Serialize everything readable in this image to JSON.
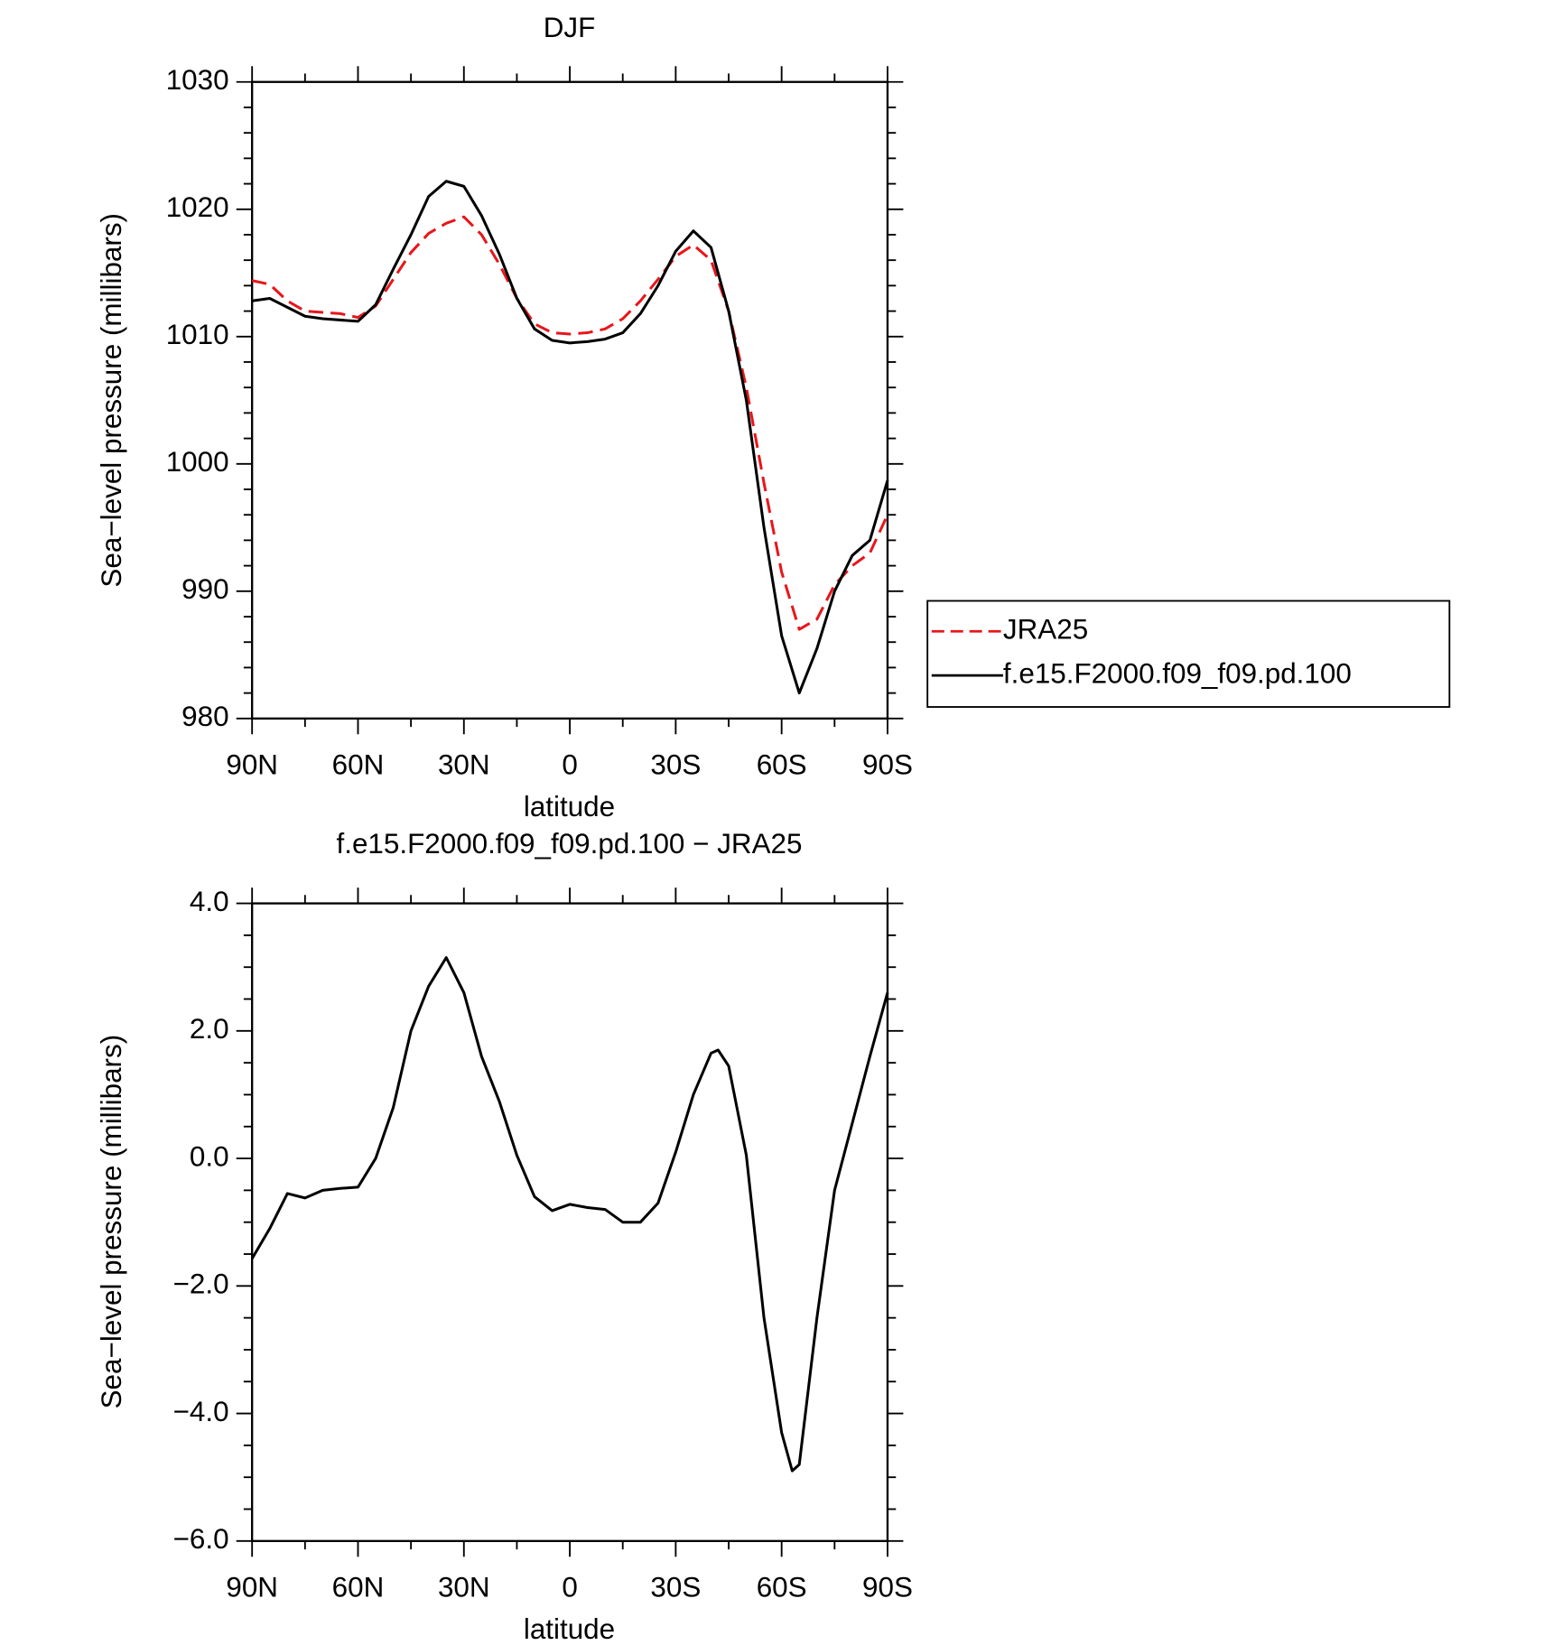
{
  "chart_data": [
    {
      "type": "line",
      "title": "DJF",
      "xlabel": "latitude",
      "ylabel": "Sea−level pressure (millibars)",
      "x": [
        90,
        85,
        80,
        75,
        70,
        65,
        60,
        55,
        50,
        45,
        40,
        35,
        30,
        25,
        20,
        15,
        10,
        5,
        0,
        -5,
        -10,
        -15,
        -20,
        -25,
        -30,
        -35,
        -40,
        -45,
        -50,
        -55,
        -60,
        -65,
        -70,
        -75,
        -80,
        -85,
        -90
      ],
      "xlim": [
        90,
        -90
      ],
      "xticks": [
        {
          "value": 90,
          "label": "90N"
        },
        {
          "value": 60,
          "label": "60N"
        },
        {
          "value": 30,
          "label": "30N"
        },
        0,
        {
          "value": -30,
          "label": "30S"
        },
        {
          "value": -60,
          "label": "60S"
        },
        {
          "value": -90,
          "label": "90S"
        }
      ],
      "xminorticks": [
        75,
        45,
        15,
        -15,
        -45,
        -75
      ],
      "ylim": [
        980,
        1030
      ],
      "yticks": [
        980,
        990,
        1000,
        1010,
        1020,
        1030
      ],
      "yminorticks": [
        982,
        984,
        986,
        988,
        992,
        994,
        996,
        998,
        1002,
        1004,
        1006,
        1008,
        1012,
        1014,
        1016,
        1018,
        1022,
        1024,
        1026,
        1028
      ],
      "legend": "right",
      "series": [
        {
          "name": "JRA25",
          "color": "#e8161b",
          "dashed": true,
          "values": [
            1014.4,
            1014.1,
            1012.8,
            1012.0,
            1011.9,
            1011.8,
            1011.5,
            1012.4,
            1014.5,
            1016.6,
            1018.1,
            1018.9,
            1019.4,
            1018.0,
            1015.7,
            1013.0,
            1011.0,
            1010.3,
            1010.2,
            1010.3,
            1010.6,
            1011.4,
            1012.8,
            1014.5,
            1016.3,
            1017.2,
            1016.0,
            1012.0,
            1006.0,
            998.5,
            991.5,
            987.0,
            987.8,
            990.5,
            992.0,
            993.0,
            996.0
          ]
        },
        {
          "name": "f.e15.F2000.f09_f09.pd.100",
          "color": "#000000",
          "dashed": false,
          "values": [
            1012.8,
            1013.0,
            1012.3,
            1011.6,
            1011.4,
            1011.3,
            1011.2,
            1012.5,
            1015.3,
            1018.0,
            1021.0,
            1022.2,
            1021.8,
            1019.5,
            1016.5,
            1013.0,
            1010.6,
            1009.7,
            1009.5,
            1009.6,
            1009.8,
            1010.3,
            1011.8,
            1014.0,
            1016.7,
            1018.3,
            1017.0,
            1012.0,
            1005.0,
            995.0,
            986.5,
            982.0,
            985.5,
            990.0,
            992.8,
            994.0,
            998.7
          ]
        }
      ]
    },
    {
      "type": "line",
      "title": "f.e15.F2000.f09_f09.pd.100 − JRA25",
      "xlabel": "latitude",
      "ylabel": "Sea−level pressure (millibars)",
      "x": [
        90,
        85,
        80,
        75,
        70,
        65,
        60,
        55,
        50,
        45,
        40,
        35,
        30,
        25,
        20,
        15,
        10,
        5,
        0,
        -5,
        -10,
        -15,
        -20,
        -25,
        -30,
        -35,
        -40,
        -42,
        -45,
        -50,
        -55,
        -60,
        -63,
        -65,
        -70,
        -75,
        -80,
        -85,
        -90
      ],
      "xlim": [
        90,
        -90
      ],
      "xticks": [
        {
          "value": 90,
          "label": "90N"
        },
        {
          "value": 60,
          "label": "60N"
        },
        {
          "value": 30,
          "label": "30N"
        },
        0,
        {
          "value": -30,
          "label": "30S"
        },
        {
          "value": -60,
          "label": "60S"
        },
        {
          "value": -90,
          "label": "90S"
        }
      ],
      "xminorticks": [
        75,
        45,
        15,
        -15,
        -45,
        -75
      ],
      "ylim": [
        -6,
        4
      ],
      "yticks": [
        {
          "value": -6,
          "label": "−6.0"
        },
        {
          "value": -4,
          "label": "−4.0"
        },
        {
          "value": -2,
          "label": "−2.0"
        },
        {
          "value": 0,
          "label": "0.0"
        },
        {
          "value": 2,
          "label": "2.0"
        },
        {
          "value": 4,
          "label": "4.0"
        }
      ],
      "yminorticks": [
        -5.5,
        -5,
        -4.5,
        -3.5,
        -3,
        -2.5,
        -1.5,
        -1,
        -0.5,
        0.5,
        1,
        1.5,
        2.5,
        3,
        3.5
      ],
      "series": [
        {
          "color": "#000000",
          "dashed": false,
          "values": [
            -1.57,
            -1.1,
            -0.55,
            -0.62,
            -0.5,
            -0.47,
            -0.45,
            0.0,
            0.8,
            2.0,
            2.7,
            3.15,
            2.6,
            1.6,
            0.9,
            0.05,
            -0.6,
            -0.82,
            -0.72,
            -0.77,
            -0.8,
            -1.0,
            -1.0,
            -0.7,
            0.1,
            1.0,
            1.65,
            1.7,
            1.45,
            0.05,
            -2.5,
            -4.3,
            -4.9,
            -4.8,
            -2.5,
            -0.5,
            0.55,
            1.6,
            2.6
          ]
        }
      ]
    }
  ]
}
